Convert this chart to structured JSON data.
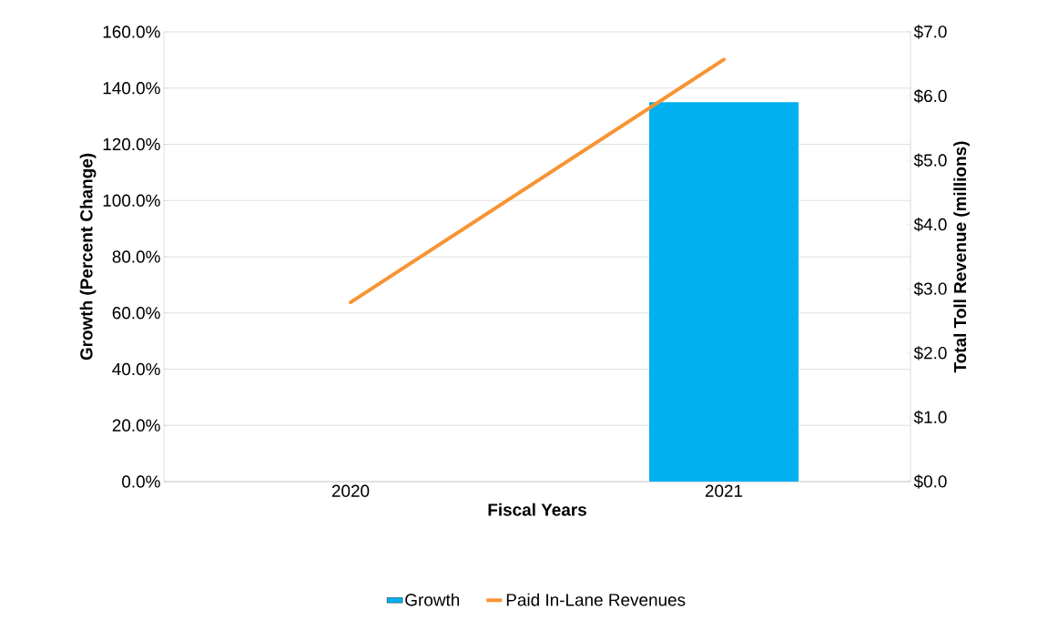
{
  "chart_data": {
    "type": "bar",
    "xlabel": "Fiscal Years",
    "ylabel": "Growth (Percent Change)",
    "y2label": "Total Toll Revenue (millions)",
    "categories": [
      "2020",
      "2021"
    ],
    "series": [
      {
        "name": "Growth",
        "color": "#00b0f0",
        "values": [
          null,
          135
        ]
      },
      {
        "name": "Paid In-Lane Revenues",
        "type": "line",
        "axis": "y2",
        "color": "#f79433",
        "values": [
          2.79,
          6.57
        ]
      }
    ],
    "ylim": [
      0,
      160
    ],
    "yticks": [
      {
        "value": 0,
        "label": "0.0%"
      },
      {
        "value": 20,
        "label": "20.0%"
      },
      {
        "value": 40,
        "label": "40.0%"
      },
      {
        "value": 60,
        "label": "60.0%"
      },
      {
        "value": 80,
        "label": "80.0%"
      },
      {
        "value": 100,
        "label": "100.0%"
      },
      {
        "value": 120,
        "label": "120.0%"
      },
      {
        "value": 140,
        "label": "140.0%"
      },
      {
        "value": 160,
        "label": "160.0%"
      }
    ],
    "y2lim": [
      0,
      7
    ],
    "y2ticks": [
      {
        "value": 0,
        "label": "$0.0"
      },
      {
        "value": 1,
        "label": "$1.0"
      },
      {
        "value": 2,
        "label": "$2.0"
      },
      {
        "value": 3,
        "label": "$3.0"
      },
      {
        "value": 4,
        "label": "$4.0"
      },
      {
        "value": 5,
        "label": "$5.0"
      },
      {
        "value": 6,
        "label": "$6.0"
      },
      {
        "value": 7,
        "label": "$7.0"
      }
    ],
    "grid": "y",
    "legend": "bottom"
  }
}
